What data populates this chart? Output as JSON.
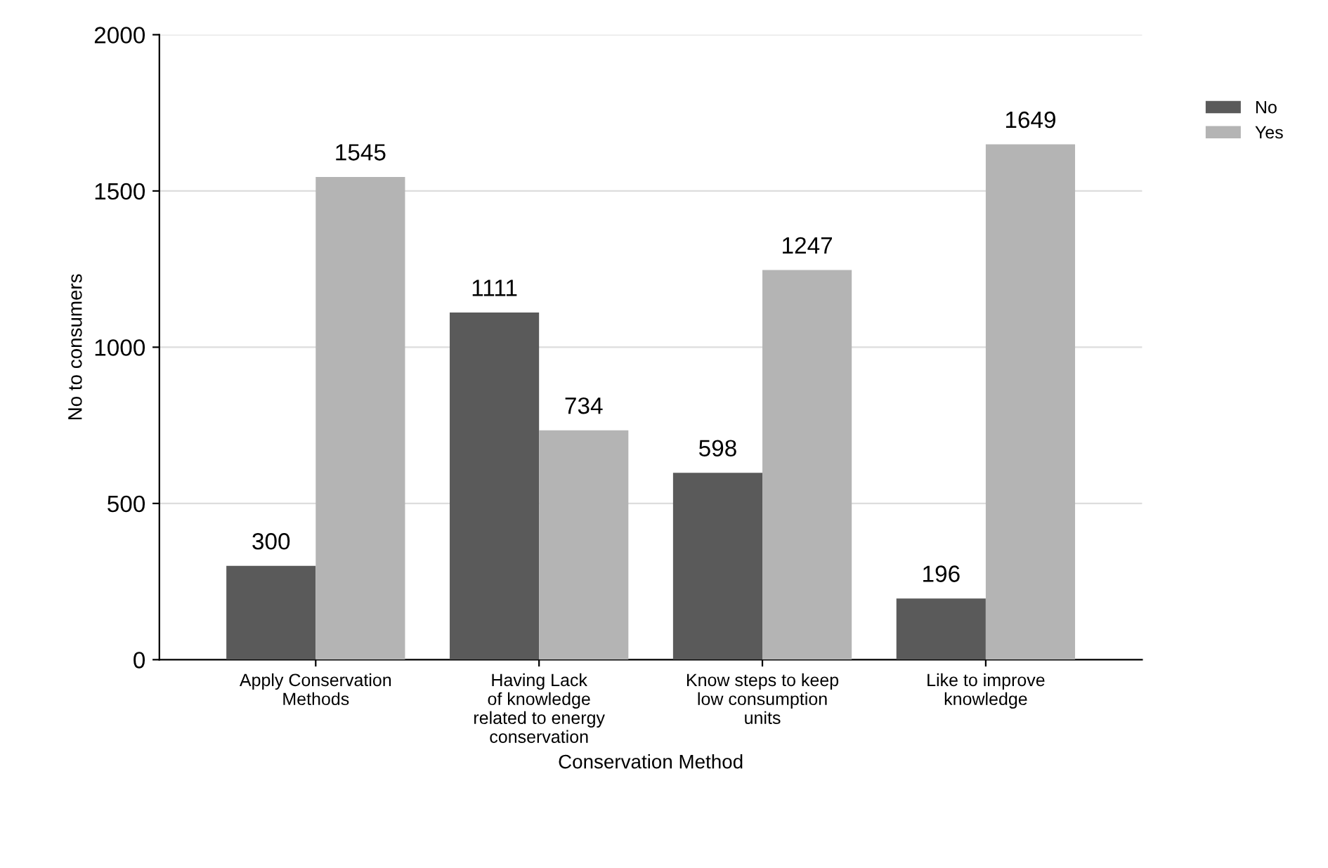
{
  "chart_data": {
    "type": "bar",
    "xlabel": "Conservation Method",
    "ylabel": "No to consumers",
    "categories": [
      "Apply Conservation\nMethods",
      "Having Lack\nof knowledge\nrelated to energy\nconservation",
      "Know steps to keep\nlow consumption\nunits",
      "Like to improve\nknowledge"
    ],
    "series": [
      {
        "name": "No",
        "color": "#5a5a5a",
        "values": [
          300,
          1111,
          598,
          196
        ]
      },
      {
        "name": "Yes",
        "color": "#b4b4b4",
        "values": [
          1545,
          734,
          1247,
          1649
        ]
      }
    ],
    "ylim": [
      0,
      2000
    ],
    "yticks": [
      0,
      500,
      1000,
      1500,
      2000
    ],
    "grid": "y",
    "legend": "top right",
    "data_labels": true
  }
}
